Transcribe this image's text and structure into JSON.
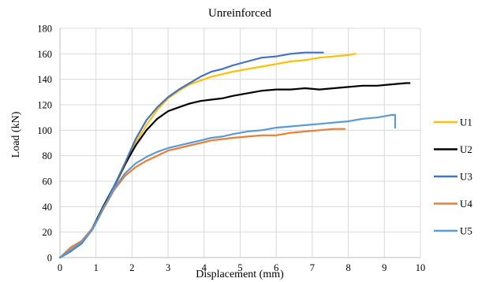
{
  "chart_data": {
    "type": "line",
    "title": "Unreinforced",
    "xlabel": "Displacement (mm)",
    "ylabel": "Load (kN)",
    "xlim": [
      0,
      10
    ],
    "ylim": [
      0,
      180
    ],
    "xticks": [
      "0",
      "1",
      "2",
      "3",
      "4",
      "5",
      "6",
      "7",
      "8",
      "9",
      "10"
    ],
    "yticks": [
      "0",
      "20",
      "40",
      "60",
      "80",
      "100",
      "120",
      "140",
      "160",
      "180"
    ],
    "grid": true,
    "legend_position": "right",
    "series": [
      {
        "name": "U1",
        "color": "#FFC000",
        "x": [
          0,
          0.3,
          0.6,
          0.9,
          1.2,
          1.5,
          1.8,
          2.1,
          2.4,
          2.7,
          3.0,
          3.3,
          3.6,
          3.9,
          4.2,
          4.5,
          4.8,
          5.2,
          5.6,
          6.0,
          6.4,
          6.8,
          7.2,
          7.6,
          8.0,
          8.2
        ],
        "y": [
          0,
          7,
          12,
          22,
          38,
          55,
          72,
          90,
          104,
          116,
          125,
          131,
          136,
          139,
          142,
          144,
          146,
          148,
          150,
          152,
          154,
          155,
          157,
          158,
          159,
          160
        ]
      },
      {
        "name": "U2",
        "color": "#000000",
        "x": [
          0,
          0.3,
          0.6,
          0.9,
          1.2,
          1.5,
          1.8,
          2.1,
          2.4,
          2.7,
          3.0,
          3.3,
          3.6,
          3.9,
          4.2,
          4.5,
          4.8,
          5.2,
          5.6,
          6.0,
          6.4,
          6.8,
          7.2,
          7.6,
          8.0,
          8.4,
          8.8,
          9.2,
          9.6,
          9.7
        ],
        "y": [
          0,
          5,
          12,
          23,
          40,
          56,
          73,
          88,
          100,
          109,
          115,
          118,
          121,
          123,
          124,
          125,
          127,
          129,
          131,
          132,
          132,
          133,
          132,
          133,
          134,
          135,
          135,
          136,
          137,
          137
        ]
      },
      {
        "name": "U3",
        "color": "#4472C4",
        "x": [
          0,
          0.3,
          0.6,
          0.9,
          1.2,
          1.5,
          1.8,
          2.1,
          2.4,
          2.7,
          3.0,
          3.3,
          3.6,
          3.9,
          4.2,
          4.5,
          4.8,
          5.2,
          5.6,
          6.0,
          6.4,
          6.8,
          7.1,
          7.3
        ],
        "y": [
          0,
          5,
          11,
          22,
          38,
          56,
          74,
          93,
          108,
          118,
          126,
          132,
          137,
          142,
          146,
          148,
          151,
          154,
          157,
          158,
          160,
          161,
          161,
          161
        ]
      },
      {
        "name": "U4",
        "color": "#ED7D31",
        "x": [
          0,
          0.3,
          0.6,
          0.9,
          1.2,
          1.5,
          1.8,
          2.1,
          2.4,
          2.7,
          3.0,
          3.3,
          3.6,
          3.9,
          4.2,
          4.5,
          4.8,
          5.2,
          5.6,
          6.0,
          6.4,
          6.8,
          7.2,
          7.6,
          7.9
        ],
        "y": [
          0,
          8,
          13,
          23,
          38,
          53,
          64,
          71,
          76,
          80,
          84,
          86,
          88,
          90,
          92,
          93,
          94,
          95,
          96,
          96,
          98,
          99,
          100,
          101,
          101
        ]
      },
      {
        "name": "U5",
        "color": "#5B9BD5",
        "x": [
          0,
          0.3,
          0.6,
          0.9,
          1.2,
          1.5,
          1.8,
          2.1,
          2.4,
          2.7,
          3.0,
          3.3,
          3.6,
          3.9,
          4.2,
          4.5,
          4.8,
          5.2,
          5.6,
          6.0,
          6.4,
          6.8,
          7.2,
          7.6,
          8.0,
          8.4,
          8.8,
          9.2,
          9.3,
          9.3
        ],
        "y": [
          0,
          6,
          12,
          22,
          39,
          54,
          66,
          74,
          79,
          83,
          86,
          88,
          90,
          92,
          94,
          95,
          97,
          99,
          100,
          102,
          103,
          104,
          105,
          106,
          107,
          109,
          110,
          112,
          112,
          102
        ]
      }
    ]
  }
}
